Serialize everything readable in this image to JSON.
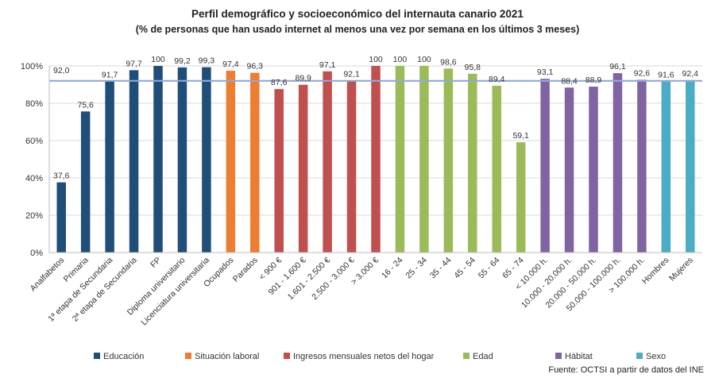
{
  "chart_data": {
    "type": "bar",
    "title": "Perfil demográfico  y socioeconómico  del internauta canario  2021",
    "subtitle": "(% de personas que han usado internet al menos una vez por semana en los últimos 3 meses)",
    "ylim": [
      0,
      100
    ],
    "ytick_labels": [
      "0%",
      "20%",
      "40%",
      "60%",
      "80%",
      "100%"
    ],
    "ytick_values": [
      0,
      20,
      40,
      60,
      80,
      100
    ],
    "grid": true,
    "reference_line": {
      "value": 92.0,
      "color": "#8EA9DB"
    },
    "source": "Fuente: OCTSI a partir de datos del INE",
    "legend_position": "bottom",
    "groups": [
      {
        "name": "Educación",
        "color": "#1F4E79"
      },
      {
        "name": "Situación laboral",
        "color": "#ED7D31"
      },
      {
        "name": "Ingresos mensuales netos del hogar",
        "color": "#C0504D"
      },
      {
        "name": "Edad",
        "color": "#9BBB59"
      },
      {
        "name": "Hábitat",
        "color": "#8064A2"
      },
      {
        "name": "Sexo",
        "color": "#4BACC6"
      }
    ],
    "bars": [
      {
        "category": "Analfabetos",
        "value": 37.6,
        "label": "37,6",
        "group": 0
      },
      {
        "category": "Primaria",
        "value": 75.6,
        "label": "75,6",
        "group": 0
      },
      {
        "category": "1ª etapa de Secundaria",
        "value": 91.7,
        "label": "91,7",
        "group": 0
      },
      {
        "category": "2ª etapa de Secundaria",
        "value": 97.7,
        "label": "97,7",
        "group": 0
      },
      {
        "category": "FP",
        "value": 100,
        "label": "100",
        "group": 0
      },
      {
        "category": "Diploma universitario",
        "value": 99.2,
        "label": "99,2",
        "group": 0
      },
      {
        "category": "Licenciatura universitaria",
        "value": 99.3,
        "label": "99,3",
        "group": 0
      },
      {
        "category": "Ocupados",
        "value": 97.4,
        "label": "97,4",
        "group": 1
      },
      {
        "category": "Parados",
        "value": 96.3,
        "label": "96,3",
        "group": 1
      },
      {
        "category": "< 900 €",
        "value": 87.6,
        "label": "87,6",
        "group": 2
      },
      {
        "category": "901 - 1.600 €",
        "value": 89.9,
        "label": "89,9",
        "group": 2
      },
      {
        "category": "1.601 - 2.500 €",
        "value": 97.1,
        "label": "97,1",
        "group": 2
      },
      {
        "category": "2.500 - 3.000 €",
        "value": 92.1,
        "label": "92,1",
        "group": 2
      },
      {
        "category": "> 3.000 €",
        "value": 100,
        "label": "100",
        "group": 2
      },
      {
        "category": "16 - 24",
        "value": 100,
        "label": "100",
        "group": 3
      },
      {
        "category": "25 - 34",
        "value": 100,
        "label": "100",
        "group": 3
      },
      {
        "category": "35 - 44",
        "value": 98.6,
        "label": "98,6",
        "group": 3
      },
      {
        "category": "45 - 54",
        "value": 95.8,
        "label": "95,8",
        "group": 3
      },
      {
        "category": "55 - 64",
        "value": 89.4,
        "label": "89,4",
        "group": 3
      },
      {
        "category": "65 - 74",
        "value": 59.1,
        "label": "59,1",
        "group": 3
      },
      {
        "category": "< 10.000 h.",
        "value": 93.1,
        "label": "93,1",
        "group": 4
      },
      {
        "category": "10.000 - 20.000 h.",
        "value": 88.4,
        "label": "88,4",
        "group": 4
      },
      {
        "category": "20.000 - 50.000 h.",
        "value": 88.9,
        "label": "88,9",
        "group": 4
      },
      {
        "category": "50.000 - 100.000 h.",
        "value": 96.1,
        "label": "96,1",
        "group": 4
      },
      {
        "category": "> 100.000 h.",
        "value": 92.6,
        "label": "92,6",
        "group": 4
      },
      {
        "category": "Hombres",
        "value": 91.6,
        "label": "91,6",
        "group": 5
      },
      {
        "category": "Mujeres",
        "value": 92.4,
        "label": "92,4",
        "group": 5
      }
    ],
    "reference_label": "92,0"
  }
}
